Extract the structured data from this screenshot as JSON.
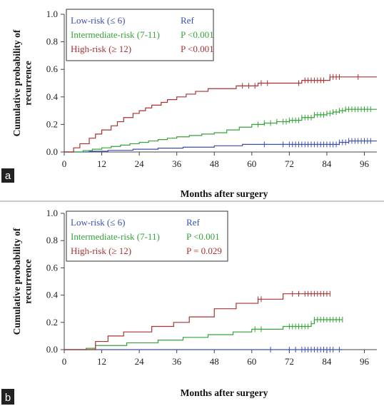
{
  "colors": {
    "low": "#3a4fb0",
    "intermediate": "#34a33a",
    "high": "#a83232",
    "axis": "#444444",
    "panel_tag_bg": "#222222"
  },
  "chart_data": [
    {
      "panel_label": "a",
      "type": "line",
      "xlabel": "Months after surgery",
      "ylabel": "Cumulative probability of recurrence",
      "xlim": [
        0,
        100
      ],
      "ylim": [
        0,
        1.0
      ],
      "xticks": [
        0,
        12,
        24,
        36,
        48,
        60,
        72,
        84,
        96
      ],
      "xtick_labels": [
        "0",
        "12",
        "24",
        "36",
        "48",
        "60",
        "72",
        "84",
        "96"
      ],
      "yticks": [
        0,
        0.2,
        0.4,
        0.6,
        0.8,
        1.0
      ],
      "ytick_labels": [
        "0.0",
        "0.2",
        "0.4",
        "0.6",
        "0.8",
        "1.0"
      ],
      "legend_placement": "top-left",
      "legend": [
        {
          "label": "Low-risk (≤ 6)",
          "stat": "Ref",
          "color": "#3a4fb0"
        },
        {
          "label": "Intermediate-risk (7-11)",
          "stat": "P <0.001",
          "color": "#34a33a"
        },
        {
          "label": "High-risk (≥ 12)",
          "stat": "P <0.001",
          "color": "#a83232"
        }
      ],
      "series": [
        {
          "color": "#3a4fb0",
          "points": [
            [
              0,
              0
            ],
            [
              8,
              0
            ],
            [
              8,
              0.005
            ],
            [
              14,
              0.005
            ],
            [
              14,
              0.012
            ],
            [
              22,
              0.012
            ],
            [
              22,
              0.02
            ],
            [
              30,
              0.02
            ],
            [
              30,
              0.028
            ],
            [
              38,
              0.028
            ],
            [
              38,
              0.035
            ],
            [
              48,
              0.035
            ],
            [
              48,
              0.045
            ],
            [
              57,
              0.045
            ],
            [
              57,
              0.055
            ],
            [
              88,
              0.055
            ],
            [
              88,
              0.07
            ],
            [
              91,
              0.07
            ],
            [
              91,
              0.08
            ],
            [
              100,
              0.08
            ]
          ],
          "censor_x": [
            64,
            70,
            72,
            73,
            74,
            75,
            76,
            77,
            78,
            79,
            80,
            81,
            82,
            83,
            84,
            85,
            86,
            87,
            88,
            89,
            90,
            91,
            92,
            93,
            94,
            95,
            96,
            97,
            98
          ]
        },
        {
          "color": "#34a33a",
          "points": [
            [
              0,
              0
            ],
            [
              6,
              0
            ],
            [
              6,
              0.01
            ],
            [
              9,
              0.01
            ],
            [
              9,
              0.02
            ],
            [
              12,
              0.02
            ],
            [
              12,
              0.03
            ],
            [
              15,
              0.03
            ],
            [
              15,
              0.04
            ],
            [
              18,
              0.04
            ],
            [
              18,
              0.05
            ],
            [
              21,
              0.05
            ],
            [
              21,
              0.06
            ],
            [
              24,
              0.06
            ],
            [
              24,
              0.07
            ],
            [
              27,
              0.07
            ],
            [
              27,
              0.08
            ],
            [
              30,
              0.08
            ],
            [
              30,
              0.09
            ],
            [
              33,
              0.09
            ],
            [
              33,
              0.1
            ],
            [
              36,
              0.1
            ],
            [
              36,
              0.11
            ],
            [
              40,
              0.11
            ],
            [
              40,
              0.12
            ],
            [
              44,
              0.12
            ],
            [
              44,
              0.13
            ],
            [
              48,
              0.13
            ],
            [
              48,
              0.14
            ],
            [
              52,
              0.14
            ],
            [
              52,
              0.16
            ],
            [
              56,
              0.16
            ],
            [
              56,
              0.18
            ],
            [
              60,
              0.18
            ],
            [
              60,
              0.2
            ],
            [
              64,
              0.2
            ],
            [
              64,
              0.21
            ],
            [
              68,
              0.21
            ],
            [
              68,
              0.22
            ],
            [
              72,
              0.22
            ],
            [
              72,
              0.23
            ],
            [
              76,
              0.23
            ],
            [
              76,
              0.25
            ],
            [
              80,
              0.25
            ],
            [
              80,
              0.27
            ],
            [
              84,
              0.27
            ],
            [
              84,
              0.28
            ],
            [
              86,
              0.28
            ],
            [
              86,
              0.29
            ],
            [
              88,
              0.29
            ],
            [
              88,
              0.3
            ],
            [
              90,
              0.3
            ],
            [
              90,
              0.31
            ],
            [
              100,
              0.31
            ]
          ],
          "censor_x": [
            62,
            64,
            66,
            68,
            70,
            71,
            72,
            73,
            74,
            75,
            76,
            77,
            78,
            79,
            80,
            81,
            82,
            83,
            84,
            85,
            86,
            87,
            88,
            89,
            90,
            91,
            92,
            93,
            94,
            95,
            96,
            97,
            98
          ]
        },
        {
          "color": "#a83232",
          "points": [
            [
              0,
              0
            ],
            [
              3,
              0
            ],
            [
              3,
              0.03
            ],
            [
              5,
              0.03
            ],
            [
              5,
              0.06
            ],
            [
              8,
              0.06
            ],
            [
              8,
              0.1
            ],
            [
              10,
              0.1
            ],
            [
              10,
              0.13
            ],
            [
              12,
              0.13
            ],
            [
              12,
              0.16
            ],
            [
              15,
              0.16
            ],
            [
              15,
              0.19
            ],
            [
              17,
              0.19
            ],
            [
              17,
              0.22
            ],
            [
              19,
              0.22
            ],
            [
              19,
              0.25
            ],
            [
              22,
              0.25
            ],
            [
              22,
              0.28
            ],
            [
              24,
              0.28
            ],
            [
              24,
              0.3
            ],
            [
              26,
              0.3
            ],
            [
              26,
              0.32
            ],
            [
              28,
              0.32
            ],
            [
              28,
              0.34
            ],
            [
              31,
              0.34
            ],
            [
              31,
              0.36
            ],
            [
              33,
              0.36
            ],
            [
              33,
              0.38
            ],
            [
              36,
              0.38
            ],
            [
              36,
              0.4
            ],
            [
              39,
              0.4
            ],
            [
              39,
              0.42
            ],
            [
              42,
              0.42
            ],
            [
              42,
              0.44
            ],
            [
              46,
              0.44
            ],
            [
              46,
              0.46
            ],
            [
              55,
              0.46
            ],
            [
              55,
              0.48
            ],
            [
              62,
              0.48
            ],
            [
              62,
              0.5
            ],
            [
              76,
              0.5
            ],
            [
              76,
              0.52
            ],
            [
              85,
              0.52
            ],
            [
              85,
              0.545
            ],
            [
              100,
              0.545
            ]
          ],
          "censor_x": [
            57,
            59,
            61,
            63,
            65,
            75,
            77,
            78,
            79,
            80,
            81,
            82,
            83,
            85,
            86,
            87,
            88,
            94
          ]
        }
      ]
    },
    {
      "panel_label": "b",
      "type": "line",
      "xlabel": "Months after surgery",
      "ylabel": "Cumulative probability of recurrence",
      "xlim": [
        0,
        100
      ],
      "ylim": [
        0,
        1.0
      ],
      "xticks": [
        0,
        12,
        24,
        36,
        48,
        60,
        72,
        84,
        96
      ],
      "xtick_labels": [
        "0",
        "12",
        "24",
        "36",
        "48",
        "60",
        "72",
        "84",
        "96"
      ],
      "yticks": [
        0,
        0.2,
        0.4,
        0.6,
        0.8,
        1.0
      ],
      "ytick_labels": [
        "0.0",
        "0.2",
        "0.4",
        "0.6",
        "0.8",
        "1.0"
      ],
      "legend_placement": "top-left",
      "legend": [
        {
          "label": "Low-risk (≤ 6)",
          "stat": "Ref",
          "color": "#3a4fb0"
        },
        {
          "label": "Intermediate-risk (7-11)",
          "stat": "P <0.001",
          "color": "#34a33a"
        },
        {
          "label": "High-risk (≥ 12)",
          "stat": "P = 0.029",
          "color": "#a83232"
        }
      ],
      "series": [
        {
          "color": "#3a4fb0",
          "points": [
            [
              0,
              0
            ],
            [
              89,
              0
            ]
          ],
          "censor_x": [
            66,
            72,
            74,
            76,
            77,
            78,
            79,
            80,
            81,
            82,
            83,
            84,
            85,
            86,
            88
          ]
        },
        {
          "color": "#34a33a",
          "points": [
            [
              0,
              0
            ],
            [
              7,
              0
            ],
            [
              7,
              0.01
            ],
            [
              10,
              0.01
            ],
            [
              10,
              0.03
            ],
            [
              20,
              0.03
            ],
            [
              20,
              0.05
            ],
            [
              30,
              0.05
            ],
            [
              30,
              0.07
            ],
            [
              38,
              0.07
            ],
            [
              38,
              0.09
            ],
            [
              46,
              0.09
            ],
            [
              46,
              0.11
            ],
            [
              54,
              0.11
            ],
            [
              54,
              0.13
            ],
            [
              60,
              0.13
            ],
            [
              60,
              0.15
            ],
            [
              70,
              0.15
            ],
            [
              70,
              0.17
            ],
            [
              79,
              0.17
            ],
            [
              79,
              0.19
            ],
            [
              80,
              0.19
            ],
            [
              80,
              0.22
            ],
            [
              89,
              0.22
            ]
          ],
          "censor_x": [
            61,
            63,
            72,
            73,
            74,
            75,
            76,
            77,
            78,
            79,
            80,
            81,
            82,
            83,
            84,
            85,
            86,
            87,
            88,
            89
          ]
        },
        {
          "color": "#a83232",
          "points": [
            [
              0,
              0
            ],
            [
              10,
              0
            ],
            [
              10,
              0.06
            ],
            [
              14,
              0.06
            ],
            [
              14,
              0.1
            ],
            [
              19,
              0.1
            ],
            [
              19,
              0.13
            ],
            [
              28,
              0.13
            ],
            [
              28,
              0.17
            ],
            [
              35,
              0.17
            ],
            [
              35,
              0.2
            ],
            [
              40,
              0.2
            ],
            [
              40,
              0.24
            ],
            [
              48,
              0.24
            ],
            [
              48,
              0.3
            ],
            [
              55,
              0.3
            ],
            [
              55,
              0.34
            ],
            [
              62,
              0.34
            ],
            [
              62,
              0.37
            ],
            [
              70,
              0.37
            ],
            [
              70,
              0.41
            ],
            [
              85,
              0.41
            ]
          ],
          "censor_x": [
            62,
            63,
            73,
            75,
            77,
            78,
            79,
            80,
            81,
            82,
            83,
            84,
            85
          ]
        }
      ]
    }
  ]
}
